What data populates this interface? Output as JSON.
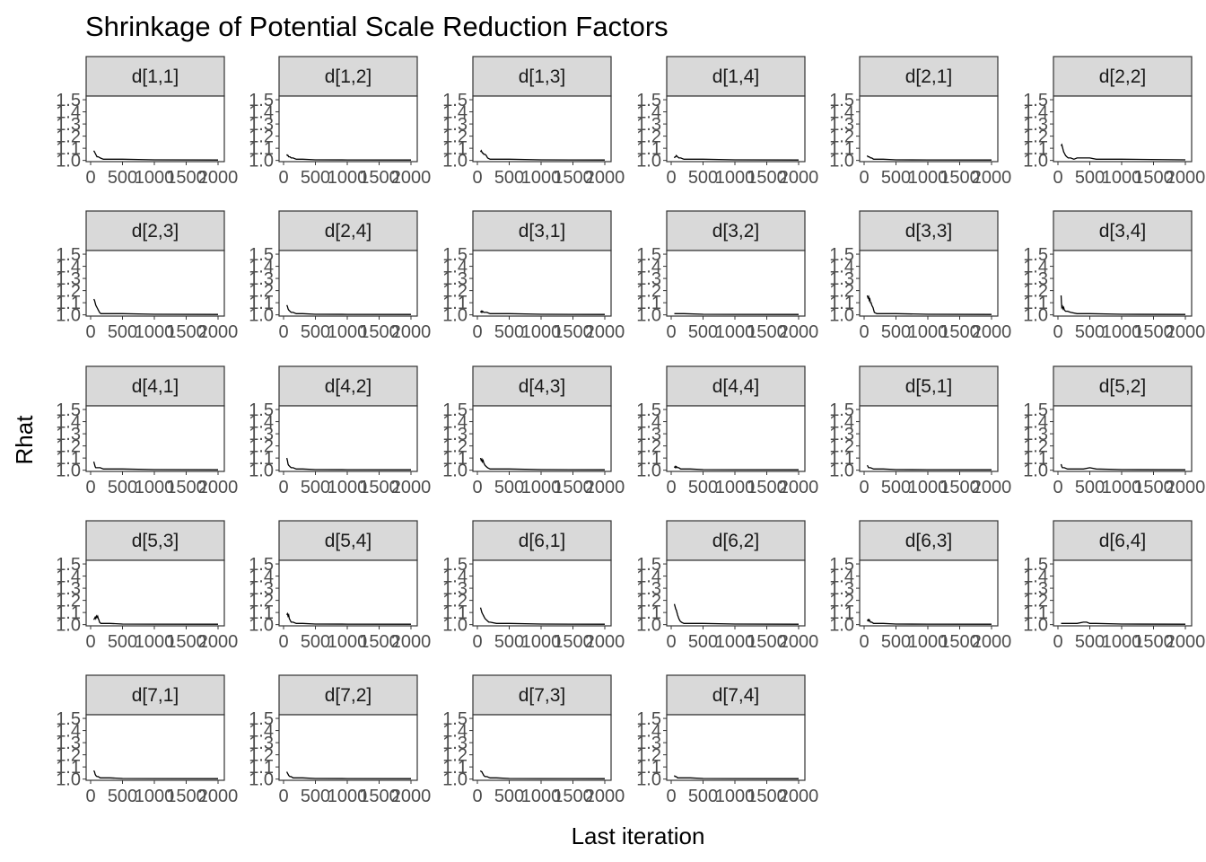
{
  "chart_data": {
    "type": "line",
    "title": "Shrinkage of Potential Scale Reduction Factors",
    "xlabel": "Last iteration",
    "ylabel": "Rhat",
    "xlim": [
      0,
      2000
    ],
    "ylim": [
      1.0,
      1.5
    ],
    "x_ticks": [
      0,
      500,
      1000,
      1500,
      2000
    ],
    "x_tick_labels": [
      "0",
      "500",
      "1000",
      "1500",
      "2000"
    ],
    "y_ticks": [
      1.0,
      1.1,
      1.2,
      1.3,
      1.4,
      1.5
    ],
    "y_tick_labels": [
      "1.0",
      "1.1",
      "1.2",
      "1.3",
      "1.4",
      "1.5"
    ],
    "facet_columns": 6,
    "panels": [
      {
        "label": "d[1,1]",
        "x": [
          50,
          60,
          70,
          80,
          90,
          100,
          120,
          150,
          200,
          300,
          500,
          1000,
          2000
        ],
        "y": [
          1.08,
          1.07,
          1.06,
          1.05,
          1.04,
          1.03,
          1.03,
          1.02,
          1.01,
          1.01,
          1.01,
          1.005,
          1.003
        ]
      },
      {
        "label": "d[1,2]",
        "x": [
          50,
          60,
          70,
          80,
          100,
          120,
          150,
          200,
          300,
          500,
          1000,
          2000
        ],
        "y": [
          1.05,
          1.04,
          1.04,
          1.03,
          1.03,
          1.02,
          1.02,
          1.01,
          1.01,
          1.005,
          1.004,
          1.003
        ]
      },
      {
        "label": "d[1,3]",
        "x": [
          50,
          60,
          70,
          80,
          90,
          100,
          120,
          140,
          160,
          200,
          300,
          500,
          1000,
          2000
        ],
        "y": [
          1.07,
          1.08,
          1.07,
          1.06,
          1.06,
          1.05,
          1.05,
          1.04,
          1.02,
          1.01,
          1.01,
          1.01,
          1.005,
          1.003
        ]
      },
      {
        "label": "d[1,4]",
        "x": [
          50,
          60,
          70,
          80,
          100,
          120,
          150,
          200,
          300,
          500,
          1000,
          2000
        ],
        "y": [
          1.02,
          1.03,
          1.03,
          1.04,
          1.03,
          1.02,
          1.02,
          1.01,
          1.01,
          1.01,
          1.005,
          1.003
        ]
      },
      {
        "label": "d[2,1]",
        "x": [
          50,
          60,
          70,
          80,
          100,
          120,
          150,
          200,
          300,
          500,
          1000,
          2000
        ],
        "y": [
          1.04,
          1.03,
          1.03,
          1.03,
          1.02,
          1.02,
          1.01,
          1.01,
          1.01,
          1.005,
          1.004,
          1.003
        ]
      },
      {
        "label": "d[2,2]",
        "x": [
          50,
          60,
          70,
          80,
          90,
          100,
          120,
          140,
          160,
          200,
          250,
          300,
          400,
          500,
          600,
          1000,
          2000
        ],
        "y": [
          1.12,
          1.13,
          1.11,
          1.09,
          1.07,
          1.06,
          1.04,
          1.03,
          1.02,
          1.02,
          1.01,
          1.02,
          1.02,
          1.02,
          1.01,
          1.01,
          1.005
        ]
      },
      {
        "label": "d[2,3]",
        "x": [
          50,
          60,
          70,
          80,
          90,
          100,
          120,
          140,
          160,
          200,
          300,
          500,
          1000,
          2000
        ],
        "y": [
          1.13,
          1.12,
          1.1,
          1.08,
          1.07,
          1.06,
          1.04,
          1.02,
          1.01,
          1.01,
          1.01,
          1.01,
          1.005,
          1.003
        ]
      },
      {
        "label": "d[2,4]",
        "x": [
          50,
          60,
          70,
          80,
          100,
          120,
          150,
          200,
          300,
          500,
          1000,
          2000
        ],
        "y": [
          1.08,
          1.07,
          1.05,
          1.04,
          1.03,
          1.02,
          1.02,
          1.01,
          1.01,
          1.005,
          1.004,
          1.003
        ]
      },
      {
        "label": "d[3,1]",
        "x": [
          50,
          60,
          70,
          80,
          100,
          150,
          200,
          300,
          500,
          1000,
          2000
        ],
        "y": [
          1.02,
          1.03,
          1.02,
          1.03,
          1.02,
          1.02,
          1.01,
          1.01,
          1.01,
          1.005,
          1.003
        ]
      },
      {
        "label": "d[3,2]",
        "x": [
          50,
          100,
          200,
          500,
          1000,
          2000
        ],
        "y": [
          1.01,
          1.01,
          1.01,
          1.005,
          1.004,
          1.003
        ]
      },
      {
        "label": "d[3,3]",
        "x": [
          50,
          60,
          70,
          80,
          90,
          100,
          110,
          120,
          130,
          140,
          160,
          200,
          300,
          500,
          1000,
          2000
        ],
        "y": [
          1.16,
          1.14,
          1.15,
          1.12,
          1.13,
          1.1,
          1.1,
          1.08,
          1.07,
          1.06,
          1.02,
          1.01,
          1.01,
          1.01,
          1.005,
          1.003
        ]
      },
      {
        "label": "d[3,4]",
        "x": [
          50,
          55,
          60,
          70,
          80,
          90,
          100,
          120,
          150,
          200,
          300,
          500,
          1000,
          2000
        ],
        "y": [
          1.16,
          1.1,
          1.06,
          1.07,
          1.05,
          1.06,
          1.04,
          1.03,
          1.03,
          1.02,
          1.01,
          1.01,
          1.005,
          1.003
        ]
      },
      {
        "label": "d[4,1]",
        "x": [
          50,
          60,
          70,
          80,
          100,
          120,
          150,
          200,
          300,
          500,
          1000,
          2000
        ],
        "y": [
          1.07,
          1.05,
          1.03,
          1.02,
          1.02,
          1.02,
          1.02,
          1.01,
          1.01,
          1.01,
          1.005,
          1.003
        ]
      },
      {
        "label": "d[4,2]",
        "x": [
          50,
          60,
          70,
          80,
          100,
          120,
          150,
          200,
          300,
          500,
          1000,
          2000
        ],
        "y": [
          1.1,
          1.08,
          1.05,
          1.04,
          1.03,
          1.02,
          1.02,
          1.01,
          1.01,
          1.005,
          1.004,
          1.003
        ]
      },
      {
        "label": "d[4,3]",
        "x": [
          50,
          60,
          70,
          80,
          90,
          100,
          120,
          140,
          160,
          200,
          300,
          500,
          1000,
          2000
        ],
        "y": [
          1.1,
          1.08,
          1.09,
          1.07,
          1.08,
          1.06,
          1.04,
          1.03,
          1.02,
          1.01,
          1.01,
          1.01,
          1.005,
          1.003
        ]
      },
      {
        "label": "d[4,4]",
        "x": [
          50,
          60,
          70,
          80,
          100,
          120,
          150,
          200,
          300,
          500,
          1000,
          2000
        ],
        "y": [
          1.02,
          1.03,
          1.02,
          1.03,
          1.02,
          1.02,
          1.01,
          1.01,
          1.01,
          1.005,
          1.004,
          1.003
        ]
      },
      {
        "label": "d[5,1]",
        "x": [
          50,
          60,
          70,
          80,
          100,
          150,
          200,
          300,
          500,
          1000,
          2000
        ],
        "y": [
          1.04,
          1.03,
          1.02,
          1.02,
          1.02,
          1.01,
          1.01,
          1.01,
          1.005,
          1.004,
          1.003
        ]
      },
      {
        "label": "d[5,2]",
        "x": [
          50,
          60,
          70,
          80,
          100,
          150,
          200,
          300,
          400,
          500,
          600,
          1000,
          2000
        ],
        "y": [
          1.05,
          1.03,
          1.02,
          1.02,
          1.02,
          1.01,
          1.01,
          1.01,
          1.01,
          1.02,
          1.01,
          1.005,
          1.003
        ]
      },
      {
        "label": "d[5,3]",
        "x": [
          50,
          60,
          70,
          80,
          90,
          100,
          110,
          120,
          130,
          140,
          160,
          200,
          300,
          500,
          1000,
          2000
        ],
        "y": [
          1.04,
          1.05,
          1.06,
          1.05,
          1.07,
          1.06,
          1.07,
          1.05,
          1.04,
          1.02,
          1.01,
          1.01,
          1.01,
          1.005,
          1.004,
          1.003
        ]
      },
      {
        "label": "d[5,4]",
        "x": [
          50,
          60,
          70,
          80,
          90,
          100,
          120,
          150,
          200,
          300,
          500,
          1000,
          2000
        ],
        "y": [
          1.08,
          1.09,
          1.07,
          1.08,
          1.05,
          1.04,
          1.02,
          1.02,
          1.01,
          1.01,
          1.005,
          1.004,
          1.003
        ]
      },
      {
        "label": "d[6,1]",
        "x": [
          50,
          60,
          70,
          80,
          90,
          100,
          120,
          140,
          160,
          180,
          200,
          300,
          500,
          1000,
          2000
        ],
        "y": [
          1.14,
          1.12,
          1.1,
          1.09,
          1.08,
          1.07,
          1.05,
          1.04,
          1.03,
          1.02,
          1.02,
          1.01,
          1.01,
          1.005,
          1.003
        ]
      },
      {
        "label": "d[6,2]",
        "x": [
          50,
          60,
          70,
          80,
          90,
          100,
          120,
          140,
          160,
          200,
          300,
          500,
          1000,
          2000
        ],
        "y": [
          1.17,
          1.15,
          1.13,
          1.12,
          1.1,
          1.08,
          1.05,
          1.03,
          1.02,
          1.01,
          1.01,
          1.01,
          1.005,
          1.003
        ]
      },
      {
        "label": "d[6,3]",
        "x": [
          50,
          60,
          70,
          80,
          100,
          120,
          150,
          200,
          300,
          500,
          1000,
          2000
        ],
        "y": [
          1.03,
          1.04,
          1.03,
          1.04,
          1.02,
          1.02,
          1.01,
          1.01,
          1.01,
          1.005,
          1.004,
          1.003
        ]
      },
      {
        "label": "d[6,4]",
        "x": [
          50,
          100,
          200,
          300,
          400,
          450,
          500,
          600,
          1000,
          2000
        ],
        "y": [
          1.01,
          1.01,
          1.01,
          1.01,
          1.02,
          1.02,
          1.01,
          1.01,
          1.005,
          1.003
        ]
      },
      {
        "label": "d[7,1]",
        "x": [
          50,
          60,
          70,
          80,
          100,
          120,
          150,
          200,
          300,
          500,
          1000,
          2000
        ],
        "y": [
          1.07,
          1.06,
          1.04,
          1.03,
          1.02,
          1.02,
          1.01,
          1.01,
          1.01,
          1.005,
          1.004,
          1.003
        ]
      },
      {
        "label": "d[7,2]",
        "x": [
          50,
          60,
          70,
          80,
          100,
          120,
          150,
          200,
          300,
          500,
          1000,
          2000
        ],
        "y": [
          1.06,
          1.05,
          1.04,
          1.03,
          1.02,
          1.02,
          1.01,
          1.01,
          1.01,
          1.005,
          1.004,
          1.003
        ]
      },
      {
        "label": "d[7,3]",
        "x": [
          50,
          60,
          70,
          80,
          90,
          100,
          120,
          150,
          200,
          300,
          500,
          1000,
          2000
        ],
        "y": [
          1.07,
          1.06,
          1.06,
          1.05,
          1.04,
          1.03,
          1.02,
          1.02,
          1.01,
          1.01,
          1.005,
          1.004,
          1.003
        ]
      },
      {
        "label": "d[7,4]",
        "x": [
          50,
          60,
          70,
          80,
          100,
          150,
          200,
          300,
          500,
          1000,
          2000
        ],
        "y": [
          1.03,
          1.02,
          1.02,
          1.02,
          1.01,
          1.01,
          1.01,
          1.01,
          1.005,
          1.004,
          1.003
        ]
      }
    ]
  },
  "colors": {
    "line": "#000000",
    "strip_fill": "#d9d9d9",
    "strip_border": "#333333",
    "panel_border": "#333333",
    "tick_text": "#4d4d4d",
    "tick_mark": "#333333"
  }
}
